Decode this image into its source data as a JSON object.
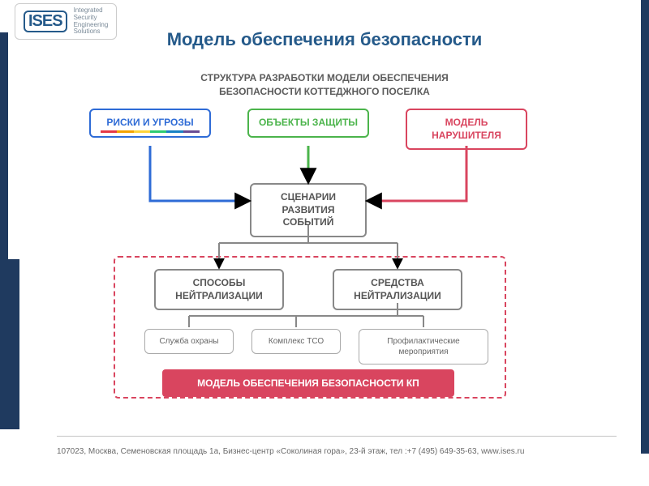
{
  "logo": {
    "mark": "ISES",
    "lines": [
      "Integrated",
      "Security",
      "Engineering",
      "Solutions"
    ]
  },
  "title": "Модель обеспечения безопасности",
  "subtitle_l1": "СТРУКТУРА РАЗРАБОТКИ МОДЕЛИ ОБЕСПЕЧЕНИЯ",
  "subtitle_l2": "БЕЗОПАСНОСТИ КОТТЕДЖНОГО ПОСЕЛКА",
  "colors": {
    "blue": "#2e6bd6",
    "green": "#4bb44b",
    "red": "#d9455f",
    "grey": "#888888",
    "dark": "#1f3a5f",
    "rainbow": [
      "#e63946",
      "#f4a300",
      "#ffd43b",
      "#2ecc71",
      "#1982c4",
      "#6a4c93"
    ]
  },
  "top_boxes": [
    {
      "label": "РИСКИ И УГРОЗЫ",
      "color_key": "blue"
    },
    {
      "label": "ОБЪЕКТЫ ЗАЩИТЫ",
      "color_key": "green"
    },
    {
      "label": "МОДЕЛЬ НАРУШИТЕЛЯ",
      "color_key": "red"
    }
  ],
  "center_box": "СЦЕНАРИИ РАЗВИТИЯ СОБЫТИЙ",
  "mid_boxes": [
    "СПОСОБЫ НЕЙТРАЛИЗАЦИИ",
    "СРЕДСТВА НЕЙТРАЛИЗАЦИИ"
  ],
  "leaf_boxes": [
    "Служба охраны",
    "Комплекс ТСО",
    "Профилактические мероприятия"
  ],
  "bottom_bar": "МОДЕЛЬ ОБЕСПЕЧЕНИЯ БЕЗОПАСНОСТИ КП",
  "footer": "107023,  Москва,  Семеновская площадь 1а,  Бизнес-центр «Соколиная гора»,   23-й этаж,   тел :+7 (495) 649-35-63,   www.ises.ru"
}
